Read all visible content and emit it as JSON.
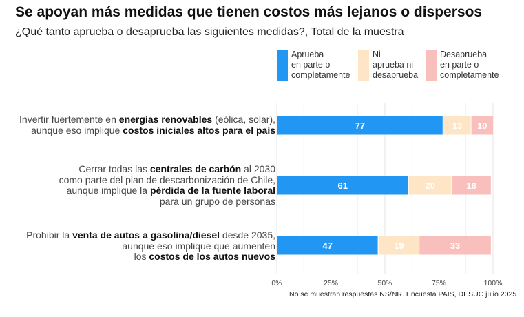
{
  "title": "Se apoyan más medidas que tienen costos más lejanos o dispersos",
  "subtitle": "¿Qué tanto aprueba o desaprueba las siguientes medidas?, Total de la muestra",
  "footnote": "No se muestran respuestas NS/NR. Encuesta PAIS, DESUC julio 2025",
  "colors": {
    "aprueba": "#2196f3",
    "ni": "#fde5c6",
    "desaprueba": "#f9bfbd",
    "text_dark": "#ffffff",
    "text_light": "#ffffff"
  },
  "legend": [
    {
      "label": "Aprueba\nen parte o\ncompletamente"
    },
    {
      "label": "Ni\naprueba ni\ndesaprueba"
    },
    {
      "label": "Desaprueba\nen parte o\ncompletamente"
    }
  ],
  "chart_data": {
    "type": "bar",
    "orientation": "horizontal",
    "stacked": true,
    "categories": [
      "Invertir fuertemente en energías renovables (eólica, solar), aunque eso implique costos iniciales altos para el país",
      "Cerrar todas las centrales de carbón al 2030 como parte del plan de descarbonización de Chile, aunque implique la pérdida de la fuente laboral para un grupo de personas",
      "Prohibir la venta de autos a gasolina/diesel desde 2035, aunque eso implique que aumenten los costos de los autos nuevos"
    ],
    "category_lines": [
      [
        [
          {
            "t": "Invertir fuertemente en "
          },
          {
            "t": "energías renovables",
            "b": true
          },
          {
            "t": " (eólica, solar),"
          }
        ],
        [
          {
            "t": "aunque eso implique "
          },
          {
            "t": "costos iniciales altos para el país",
            "b": true
          }
        ]
      ],
      [
        [
          {
            "t": "Cerrar todas las "
          },
          {
            "t": "centrales de carbón",
            "b": true
          },
          {
            "t": " al 2030"
          }
        ],
        [
          {
            "t": "como parte del plan de descarbonización de Chile,"
          }
        ],
        [
          {
            "t": "aunque implique la "
          },
          {
            "t": "pérdida de la fuente laboral",
            "b": true
          }
        ],
        [
          {
            "t": "para un grupo de personas"
          }
        ]
      ],
      [
        [
          {
            "t": "Prohibir la "
          },
          {
            "t": "venta de autos a gasolina/diesel",
            "b": true
          },
          {
            "t": " desde 2035,"
          }
        ],
        [
          {
            "t": "aunque eso implique que aumenten"
          }
        ],
        [
          {
            "t": "los "
          },
          {
            "t": "costos de los autos nuevos",
            "b": true
          }
        ]
      ]
    ],
    "series": [
      {
        "name": "Aprueba en parte o completamente",
        "values": [
          77,
          61,
          47
        ]
      },
      {
        "name": "Ni aprueba ni desaprueba",
        "values": [
          13,
          20,
          19
        ]
      },
      {
        "name": "Desaprueba en parte o completamente",
        "values": [
          10,
          18,
          33
        ]
      }
    ],
    "xlim": [
      0,
      100
    ],
    "xticks": [
      "0%",
      "25%",
      "50%",
      "75%",
      "100%"
    ],
    "grid": true,
    "legend_position": "top-right"
  }
}
